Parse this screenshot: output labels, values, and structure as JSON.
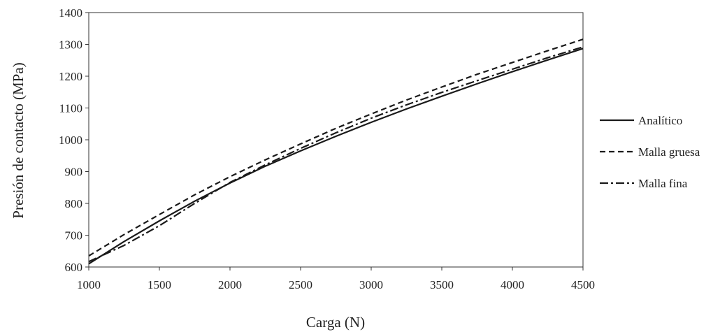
{
  "chart_data": {
    "type": "line",
    "xlabel": "Carga (N)",
    "ylabel": "Presión de contacto (MPa)",
    "xlim": [
      1000,
      4500
    ],
    "ylim": [
      600,
      1400
    ],
    "x_ticks": [
      1000,
      1500,
      2000,
      2500,
      3000,
      3500,
      4000,
      4500
    ],
    "y_ticks": [
      600,
      700,
      800,
      900,
      1000,
      1100,
      1200,
      1300,
      1400
    ],
    "grid": false,
    "legend_position": "right",
    "series": [
      {
        "name": "Analítico",
        "style": "solid",
        "color": "#1a1a1a",
        "x": [
          1000,
          1250,
          1500,
          1750,
          2000,
          2250,
          2500,
          2750,
          3000,
          3250,
          3500,
          3750,
          4000,
          4250,
          4500
        ],
        "y": [
          610,
          680,
          745,
          807,
          864,
          917,
          965,
          1011,
          1055,
          1097,
          1137,
          1176,
          1214,
          1251,
          1287
        ]
      },
      {
        "name": "Malla gruesa",
        "style": "dashed",
        "color": "#1a1a1a",
        "x": [
          1000,
          1250,
          1500,
          1750,
          2000,
          2250,
          2500,
          2750,
          3000,
          3250,
          3500,
          3750,
          4000,
          4250,
          4500
        ],
        "y": [
          635,
          702,
          765,
          827,
          884,
          937,
          987,
          1036,
          1081,
          1125,
          1166,
          1206,
          1243,
          1280,
          1316
        ]
      },
      {
        "name": "Malla fina",
        "style": "dashdot",
        "color": "#1a1a1a",
        "x": [
          1000,
          1250,
          1500,
          1750,
          2000,
          2250,
          2500,
          2750,
          3000,
          3250,
          3500,
          3750,
          4000,
          4250,
          4500
        ],
        "y": [
          617,
          668,
          730,
          800,
          866,
          921,
          973,
          1022,
          1068,
          1110,
          1149,
          1186,
          1222,
          1258,
          1292
        ]
      }
    ]
  }
}
